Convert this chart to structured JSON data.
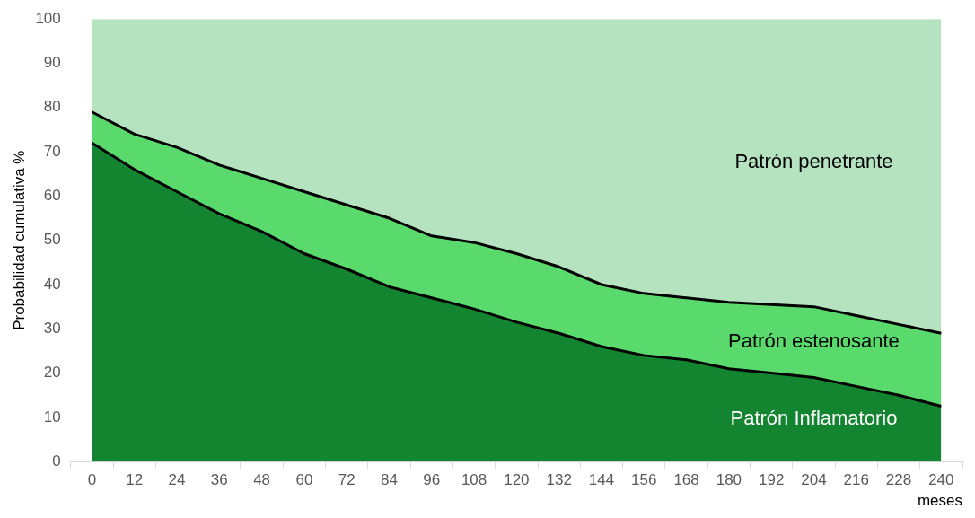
{
  "chart_data": {
    "type": "area",
    "stacked": true,
    "xlabel": "meses",
    "ylabel": "Probabilidad cumulativa %",
    "categories": [
      "0",
      "12",
      "24",
      "36",
      "48",
      "60",
      "72",
      "84",
      "96",
      "108",
      "120",
      "132",
      "144",
      "156",
      "168",
      "180",
      "192",
      "204",
      "216",
      "228",
      "240"
    ],
    "series": [
      {
        "name": "Patrón Inflamatorio",
        "color": "#138530",
        "values": [
          72,
          66,
          61,
          56,
          52,
          47,
          43.5,
          39.5,
          37,
          34.5,
          31.5,
          29,
          26,
          24,
          23,
          21,
          20,
          19,
          17,
          15,
          12.5
        ]
      },
      {
        "name": "Patrón estenosante",
        "color": "#5ad96c",
        "values": [
          7,
          8,
          10,
          11,
          12,
          14,
          14.5,
          15.5,
          14,
          15,
          15.5,
          15,
          14,
          14,
          14,
          15,
          15.5,
          16,
          16,
          16,
          16.5
        ]
      },
      {
        "name": "Patrón penetrante",
        "color": "#b5e2bf",
        "values": [
          21,
          26,
          29,
          33,
          36,
          39,
          42,
          45,
          49,
          50.5,
          53,
          56,
          60,
          62,
          63,
          64,
          64.5,
          65,
          67,
          69,
          71
        ]
      }
    ],
    "ylim": [
      0,
      100
    ],
    "yticks": [
      0,
      10,
      20,
      30,
      40,
      50,
      60,
      70,
      80,
      90,
      100
    ],
    "grid": false,
    "legend": false
  }
}
